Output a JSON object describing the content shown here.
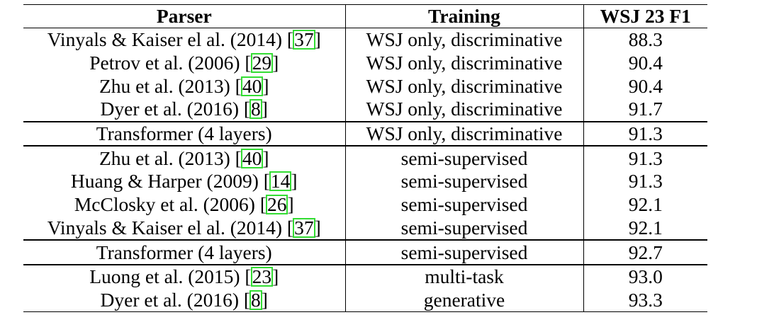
{
  "table": {
    "headers": [
      "Parser",
      "Training",
      "WSJ 23 F1"
    ],
    "rows": [
      {
        "parser": "Vinyals & Kaiser el al. (2014)",
        "ref": "37",
        "training": "WSJ only, discriminative",
        "f1": "88.3"
      },
      {
        "parser": "Petrov et al. (2006)",
        "ref": "29",
        "training": "WSJ only, discriminative",
        "f1": "90.4"
      },
      {
        "parser": "Zhu et al. (2013)",
        "ref": "40",
        "training": "WSJ only, discriminative",
        "f1": "90.4"
      },
      {
        "parser": "Dyer et al. (2016)",
        "ref": "8",
        "training": "WSJ only, discriminative",
        "f1": "91.7"
      },
      {
        "parser": "Transformer (4 layers)",
        "ref": "",
        "training": "WSJ only, discriminative",
        "f1": "91.3"
      },
      {
        "parser": "Zhu et al. (2013)",
        "ref": "40",
        "training": "semi-supervised",
        "f1": "91.3"
      },
      {
        "parser": "Huang & Harper (2009)",
        "ref": "14",
        "training": "semi-supervised",
        "f1": "91.3"
      },
      {
        "parser": "McClosky et al. (2006)",
        "ref": "26",
        "training": "semi-supervised",
        "f1": "92.1"
      },
      {
        "parser": "Vinyals & Kaiser el al. (2014)",
        "ref": "37",
        "training": "semi-supervised",
        "f1": "92.1"
      },
      {
        "parser": "Transformer (4 layers)",
        "ref": "",
        "training": "semi-supervised",
        "f1": "92.7"
      },
      {
        "parser": "Luong et al. (2015)",
        "ref": "23",
        "training": "multi-task",
        "f1": "93.0"
      },
      {
        "parser": "Dyer et al. (2016)",
        "ref": "8",
        "training": "generative",
        "f1": "93.3"
      }
    ]
  },
  "colors": {
    "text": "#000000",
    "rule": "#000000",
    "citation_box": "#33dd33"
  }
}
